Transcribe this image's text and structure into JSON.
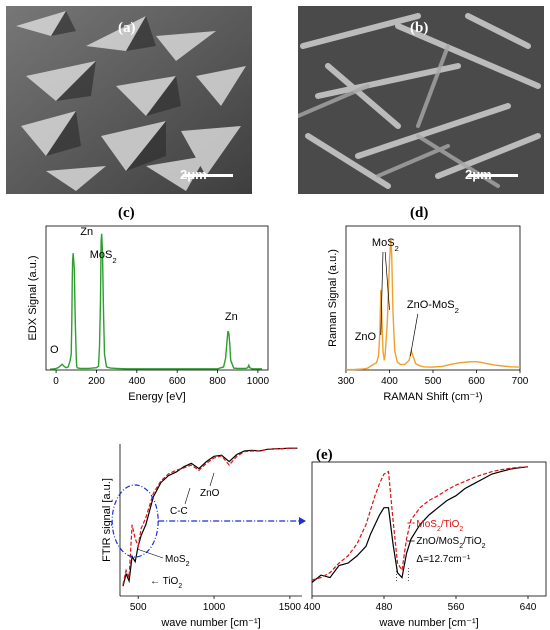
{
  "panels": {
    "a": {
      "letter": "(a)",
      "scale": "2μm"
    },
    "b": {
      "letter": "(b)",
      "scale": "2μm"
    },
    "c": {
      "letter": "(c)"
    },
    "d": {
      "letter": "(d)"
    },
    "e": {
      "letter": "(e)"
    }
  },
  "colors": {
    "edx": "#2e9e2e",
    "raman": "#f0a030",
    "ftir_black": "#000000",
    "ftir_red": "#dd1111",
    "ellipse": "#1a2fd6"
  },
  "chart_data": [
    {
      "type": "line",
      "xlabel": "Energy [eV]",
      "ylabel": "EDX Signal (a.u.)",
      "xlim": [
        -50,
        1050
      ],
      "xticks": [
        "0",
        "200",
        "400",
        "600",
        "800",
        "1000"
      ],
      "x": [
        -30,
        -10,
        0,
        10,
        20,
        30,
        40,
        50,
        60,
        70,
        75,
        78,
        80,
        82,
        85,
        90,
        95,
        100,
        102,
        105,
        110,
        120,
        140,
        160,
        180,
        200,
        210,
        215,
        220,
        223,
        226,
        230,
        235,
        240,
        250,
        270,
        300,
        350,
        400,
        450,
        500,
        550,
        600,
        650,
        700,
        750,
        800,
        830,
        840,
        848,
        852,
        856,
        860,
        865,
        880,
        900,
        920,
        940,
        950,
        955,
        960,
        970,
        1000,
        1020
      ],
      "y": [
        2,
        3,
        4,
        6,
        10,
        15,
        9,
        6,
        8,
        25,
        40,
        120,
        220,
        280,
        300,
        260,
        120,
        30,
        10,
        6,
        5,
        4,
        4,
        4,
        5,
        6,
        10,
        60,
        180,
        330,
        350,
        300,
        150,
        40,
        8,
        5,
        4,
        3,
        3,
        3,
        3,
        3,
        3,
        3,
        3,
        3,
        3,
        8,
        30,
        80,
        100,
        95,
        70,
        25,
        5,
        4,
        4,
        4,
        6,
        12,
        6,
        3,
        3,
        3
      ],
      "labels": [
        {
          "text": "Zn",
          "x": 100
        },
        {
          "text": "MoS",
          "sub": "2",
          "x": 226
        },
        {
          "text": "Zn",
          "x": 856
        },
        {
          "text": "O",
          "x": 30
        }
      ]
    },
    {
      "type": "line",
      "xlabel": "RAMAN Shift (cm⁻¹)",
      "ylabel": "Raman Signal (a.u.)",
      "xlim": [
        300,
        700
      ],
      "xticks": [
        "300",
        "400",
        "500",
        "600",
        "700"
      ],
      "x": [
        300,
        320,
        340,
        350,
        360,
        370,
        375,
        378,
        380,
        382,
        385,
        388,
        390,
        395,
        400,
        403,
        405,
        408,
        412,
        418,
        425,
        435,
        445,
        450,
        455,
        460,
        470,
        480,
        490,
        500,
        520,
        540,
        560,
        580,
        590,
        600,
        610,
        620,
        640,
        660,
        680,
        700
      ],
      "y": [
        0.2,
        0.3,
        0.6,
        1.2,
        3.0,
        4.5,
        9,
        24,
        50,
        35,
        12,
        6,
        10,
        30,
        68,
        82,
        72,
        36,
        12,
        5,
        3.5,
        3.5,
        6,
        12,
        8,
        4,
        2.5,
        2,
        1.8,
        1.8,
        2.2,
        3.5,
        4.5,
        5,
        5.2,
        5.2,
        4.8,
        4.2,
        3.2,
        2.5,
        2,
        1.8
      ],
      "labels": [
        {
          "text": "ZnO",
          "x": 335
        },
        {
          "text": "MoS",
          "sub": "2",
          "x": 380
        },
        {
          "text": "ZnO-MoS",
          "sub": "2",
          "x": 450
        }
      ]
    },
    {
      "type": "line",
      "xlabel": "wave number [cm⁻¹]",
      "ylabel": "FTIR signal [a.u.]",
      "xlim": [
        380,
        1580
      ],
      "xticks": [
        "500",
        "1000",
        "1500"
      ],
      "series": [
        {
          "name": "ZnO/MoS₂/TiO₂",
          "color": "black",
          "x": [
            400,
            420,
            440,
            460,
            480,
            500,
            520,
            550,
            600,
            650,
            700,
            750,
            800,
            850,
            900,
            950,
            1000,
            1050,
            1100,
            1150,
            1200,
            1250,
            1300,
            1350,
            1400,
            1450,
            1500,
            1550
          ],
          "y": [
            5,
            40,
            20,
            90,
            75,
            120,
            150,
            180,
            260,
            300,
            320,
            330,
            345,
            355,
            340,
            360,
            375,
            378,
            360,
            380,
            390,
            392,
            390,
            395,
            396,
            397,
            398,
            398
          ]
        },
        {
          "name": "MoS₂/TiO₂",
          "color": "red",
          "x": [
            400,
            420,
            440,
            460,
            480,
            500,
            520,
            550,
            600,
            650,
            700,
            750,
            800,
            850,
            900,
            950,
            1000,
            1050,
            1100,
            1150,
            1200,
            1250,
            1300,
            1350,
            1400,
            1450,
            1500,
            1550
          ],
          "y": [
            10,
            50,
            30,
            180,
            140,
            120,
            170,
            200,
            270,
            305,
            325,
            335,
            342,
            350,
            335,
            355,
            370,
            376,
            350,
            375,
            388,
            390,
            390,
            394,
            396,
            397,
            398,
            398
          ]
        }
      ],
      "labels": [
        {
          "text": "C-C"
        },
        {
          "text": "ZnO"
        },
        {
          "text": "MoS",
          "sub": "2"
        },
        {
          "text": "TiO",
          "sub": "2"
        }
      ]
    },
    {
      "type": "line",
      "xlabel": "wave number [cm⁻¹]",
      "xlim": [
        400,
        660
      ],
      "xticks": [
        "400",
        "480",
        "560",
        "640"
      ],
      "series": [
        {
          "name": "ZnO/MoS₂/TiO₂",
          "color": "black",
          "x": [
            400,
            410,
            420,
            430,
            440,
            450,
            460,
            465,
            470,
            475,
            480,
            485,
            490,
            495,
            500,
            505,
            510,
            520,
            530,
            540,
            550,
            560,
            570,
            580,
            590,
            600,
            610,
            620,
            630,
            640
          ],
          "y": [
            20,
            35,
            30,
            55,
            60,
            75,
            95,
            120,
            140,
            160,
            175,
            175,
            100,
            40,
            30,
            80,
            110,
            140,
            160,
            175,
            190,
            200,
            215,
            225,
            235,
            245,
            250,
            255,
            258,
            260
          ]
        },
        {
          "name": "MoS₂/TiO₂",
          "color": "red",
          "x": [
            400,
            410,
            420,
            430,
            440,
            450,
            460,
            465,
            470,
            475,
            480,
            485,
            490,
            495,
            500,
            505,
            510,
            520,
            530,
            540,
            550,
            560,
            570,
            580,
            590,
            600,
            610,
            620,
            630,
            640
          ],
          "y": [
            25,
            30,
            40,
            60,
            75,
            100,
            140,
            170,
            200,
            225,
            245,
            250,
            150,
            60,
            45,
            110,
            150,
            175,
            190,
            200,
            212,
            222,
            230,
            238,
            244,
            250,
            254,
            257,
            259,
            260
          ]
        }
      ],
      "labels": [
        {
          "text": "MoS",
          "sub": "2",
          "tail": "/TiO",
          "sub2": "2"
        },
        {
          "text": "ZnO/MoS",
          "sub": "2",
          "tail": "/TiO",
          "sub2": "2"
        },
        {
          "text": "Δ=12.7cm⁻¹"
        }
      ]
    }
  ]
}
